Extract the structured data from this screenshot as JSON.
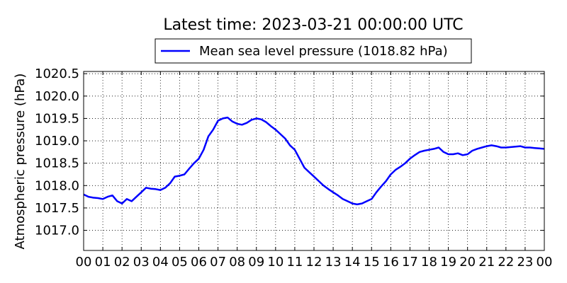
{
  "chart_data": {
    "type": "line",
    "title": "Latest time: 2023-03-21 00:00:00 UTC",
    "ylabel": "Atmospheric pressure (hPa)",
    "xlabel": "",
    "ylim": [
      1016.55,
      1020.55
    ],
    "xlim": [
      0,
      24
    ],
    "y_ticks": [
      "1017.0",
      "1017.5",
      "1018.0",
      "1018.5",
      "1019.0",
      "1019.5",
      "1020.0",
      "1020.5"
    ],
    "x_ticks": [
      "00",
      "01",
      "02",
      "03",
      "04",
      "05",
      "06",
      "07",
      "08",
      "09",
      "10",
      "11",
      "12",
      "13",
      "14",
      "15",
      "16",
      "17",
      "18",
      "19",
      "20",
      "21",
      "22",
      "23",
      "00"
    ],
    "grid": true,
    "legend_position": "top-center",
    "series": [
      {
        "name": "Mean sea level pressure (1018.82 hPa)",
        "color": "#0000ff",
        "x": [
          0,
          0.25,
          0.5,
          0.75,
          1.0,
          1.25,
          1.5,
          1.75,
          2.0,
          2.25,
          2.5,
          2.75,
          3.0,
          3.25,
          3.5,
          3.75,
          4.0,
          4.25,
          4.5,
          4.75,
          5.0,
          5.25,
          5.5,
          5.75,
          6.0,
          6.25,
          6.5,
          6.75,
          7.0,
          7.25,
          7.5,
          7.75,
          8.0,
          8.25,
          8.5,
          8.75,
          9.0,
          9.25,
          9.5,
          9.75,
          10.0,
          10.25,
          10.5,
          10.75,
          11.0,
          11.25,
          11.5,
          11.75,
          12.0,
          12.25,
          12.5,
          12.75,
          13.0,
          13.25,
          13.5,
          13.75,
          14.0,
          14.25,
          14.5,
          14.75,
          15.0,
          15.25,
          15.5,
          15.75,
          16.0,
          16.25,
          16.5,
          16.75,
          17.0,
          17.25,
          17.5,
          17.75,
          18.0,
          18.25,
          18.5,
          18.75,
          19.0,
          19.25,
          19.5,
          19.75,
          20.0,
          20.25,
          20.5,
          20.75,
          21.0,
          21.25,
          21.5,
          21.75,
          22.0,
          22.25,
          22.5,
          22.75,
          23.0,
          23.25,
          23.5,
          23.75,
          24.0
        ],
        "values": [
          1017.8,
          1017.75,
          1017.73,
          1017.72,
          1017.7,
          1017.75,
          1017.78,
          1017.65,
          1017.6,
          1017.7,
          1017.65,
          1017.75,
          1017.85,
          1017.95,
          1017.93,
          1017.92,
          1017.9,
          1017.95,
          1018.05,
          1018.2,
          1018.22,
          1018.25,
          1018.38,
          1018.5,
          1018.6,
          1018.8,
          1019.1,
          1019.25,
          1019.45,
          1019.5,
          1019.52,
          1019.43,
          1019.38,
          1019.36,
          1019.4,
          1019.47,
          1019.5,
          1019.48,
          1019.42,
          1019.33,
          1019.25,
          1019.15,
          1019.05,
          1018.9,
          1018.8,
          1018.6,
          1018.4,
          1018.3,
          1018.2,
          1018.1,
          1018.0,
          1017.92,
          1017.85,
          1017.78,
          1017.7,
          1017.65,
          1017.6,
          1017.58,
          1017.6,
          1017.65,
          1017.7,
          1017.85,
          1017.98,
          1018.1,
          1018.25,
          1018.35,
          1018.42,
          1018.5,
          1018.6,
          1018.68,
          1018.75,
          1018.78,
          1018.8,
          1018.82,
          1018.85,
          1018.75,
          1018.7,
          1018.7,
          1018.72,
          1018.68,
          1018.7,
          1018.78,
          1018.82,
          1018.85,
          1018.88,
          1018.9,
          1018.88,
          1018.85,
          1018.85,
          1018.86,
          1018.87,
          1018.88,
          1018.85,
          1018.85,
          1018.84,
          1018.83,
          1018.82
        ]
      }
    ]
  }
}
